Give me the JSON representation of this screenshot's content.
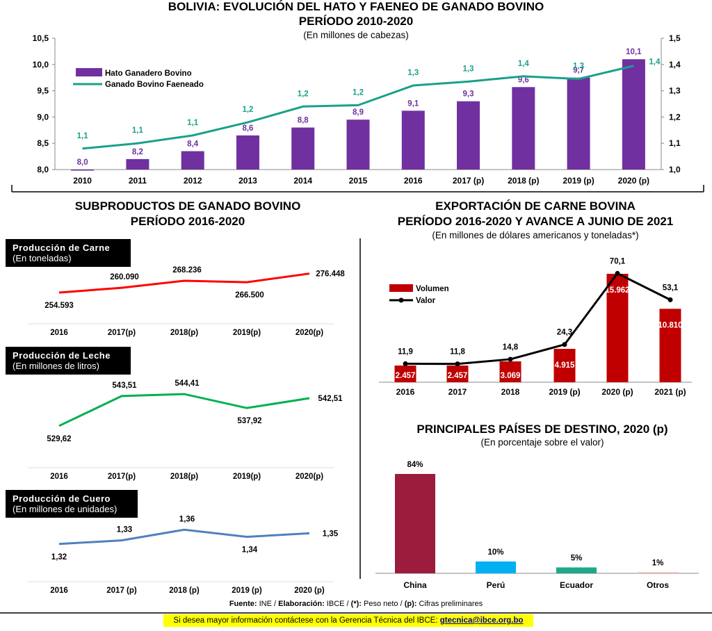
{
  "colors": {
    "purple": "#7030a0",
    "teal": "#1aa08a",
    "red": "#ff0000",
    "green": "#00b050",
    "blue": "#4f81bd",
    "darkred": "#c00000",
    "cyan": "#00b0f0",
    "maroon": "#9b1c3c",
    "ecuador": "#1fa98a",
    "otros": "#f2b8b8"
  },
  "chart_data": [
    {
      "id": "hato",
      "type": "bar+line",
      "title": "BOLIVIA: EVOLUCIÓN DEL HATO Y FAENEO DE GANADO BOVINO",
      "title2": "PERÍODO 2010-2020",
      "subtitle": "(En millones de cabezas)",
      "categories": [
        "2010",
        "2011",
        "2012",
        "2013",
        "2014",
        "2015",
        "2016",
        "2017 (p)",
        "2018 (p)",
        "2019 (p)",
        "2020 (p)"
      ],
      "series": [
        {
          "name": "Hato Ganadero Bovino",
          "type": "bar",
          "axis": "left",
          "values": [
            8.0,
            8.2,
            8.35,
            8.65,
            8.8,
            8.95,
            9.12,
            9.3,
            9.57,
            9.75,
            10.1
          ],
          "labels": [
            "8,0",
            "8,2",
            "8,4",
            "8,6",
            "8,8",
            "8,9",
            "9,1",
            "9,3",
            "9,6",
            "9,7",
            "10,1"
          ]
        },
        {
          "name": "Ganado Bovino Faeneado",
          "type": "line",
          "axis": "right",
          "values": [
            1.08,
            1.1,
            1.13,
            1.18,
            1.24,
            1.245,
            1.32,
            1.335,
            1.355,
            1.345,
            1.395
          ],
          "labels": [
            "1,1",
            "1,1",
            "1,1",
            "1,2",
            "1,2",
            "1,2",
            "1,3",
            "1,3",
            "1,4",
            "1,3",
            "1,4"
          ]
        }
      ],
      "y_left": {
        "min": 8.0,
        "max": 10.5,
        "ticks": [
          "8,0",
          "8,5",
          "9,0",
          "9,5",
          "10,0",
          "10,5"
        ]
      },
      "y_right": {
        "min": 1.0,
        "max": 1.5,
        "ticks": [
          "1,0",
          "1,1",
          "1,2",
          "1,3",
          "1,4",
          "1,5"
        ]
      }
    },
    {
      "id": "carne",
      "type": "line",
      "box_title": "Producción de Carne",
      "box_sub": "(En toneladas)",
      "categories": [
        "2016",
        "2017(p)",
        "2018(p)",
        "2019(p)",
        "2020(p)"
      ],
      "values": [
        254593,
        260090,
        268236,
        266500,
        276448
      ],
      "labels": [
        "254.593",
        "260.090",
        "268.236",
        "266.500",
        "276.448"
      ],
      "ylim": [
        245000,
        285000
      ]
    },
    {
      "id": "leche",
      "type": "line",
      "box_title": "Producción de Leche",
      "box_sub": "(En millones de litros)",
      "categories": [
        "2016",
        "2017(p)",
        "2018(p)",
        "2019(p)",
        "2020(p)"
      ],
      "values": [
        529.62,
        543.51,
        544.41,
        537.92,
        542.51
      ],
      "labels": [
        "529,62",
        "543,51",
        "544,41",
        "537,92",
        "542,51"
      ],
      "ylim": [
        526,
        548
      ]
    },
    {
      "id": "cuero",
      "type": "line",
      "box_title": "Producción de Cuero",
      "box_sub": "(En millones de unidades)",
      "categories": [
        "2016",
        "2017 (p)",
        "2018 (p)",
        "2019 (p)",
        "2020 (p)"
      ],
      "values": [
        1.32,
        1.33,
        1.36,
        1.34,
        1.35
      ],
      "labels": [
        "1,32",
        "1,33",
        "1,36",
        "1,34",
        "1,35"
      ],
      "ylim": [
        1.3,
        1.38
      ]
    },
    {
      "id": "export",
      "type": "bar+line",
      "title": "EXPORTACIÓN DE CARNE BOVINA",
      "title2": "PERÍODO 2016-2020 Y AVANCE A JUNIO DE 2021",
      "subtitle": "(En millones de dólares americanos y toneladas*)",
      "categories": [
        "2016",
        "2017",
        "2018",
        "2019 (p)",
        "2020 (p)",
        "2021 (p)"
      ],
      "series": [
        {
          "name": "Volumen",
          "type": "bar",
          "values": [
            2457,
            2457,
            3069,
            4915,
            15962,
            10810
          ],
          "labels": [
            "2.457",
            "2.457",
            "3.069",
            "4.915",
            "15.962",
            "10.810"
          ]
        },
        {
          "name": "Valor",
          "type": "line",
          "values": [
            11.9,
            11.8,
            14.8,
            24.3,
            70.1,
            53.1
          ],
          "labels": [
            "11,9",
            "11,8",
            "14,8",
            "24,3",
            "70,1",
            "53,1"
          ]
        }
      ],
      "ylim_bar": [
        0,
        17600
      ],
      "ylim_line": [
        0,
        77
      ]
    },
    {
      "id": "destino",
      "type": "bar",
      "title": "PRINCIPALES PAÍSES DE DESTINO, 2020 (p)",
      "subtitle": "(En porcentaje sobre el valor)",
      "categories": [
        "China",
        "Perú",
        "Ecuador",
        "Otros"
      ],
      "values": [
        84,
        10,
        5,
        1
      ],
      "labels": [
        "84%",
        "10%",
        "5%",
        "1%"
      ],
      "ylim": [
        0,
        84
      ]
    }
  ],
  "panel": {
    "subproductos_title": "SUBPRODUCTOS DE GANADO BOVINO",
    "subproductos_title2": "PERÍODO 2016-2020"
  },
  "footer": {
    "fuente_label": "Fuente:",
    "fuente": "INE / ",
    "elab_label": "Elaboración:",
    "elab": " IBCE / ",
    "peso_label": "(*):",
    "peso": " Peso neto / ",
    "cifras_label": "(p):",
    "cifras": " Cifras preliminares",
    "contact": "Si desea mayor información contáctese con la Gerencia Técnica del IBCE:",
    "email": "gtecnica@ibce.org.bo"
  }
}
